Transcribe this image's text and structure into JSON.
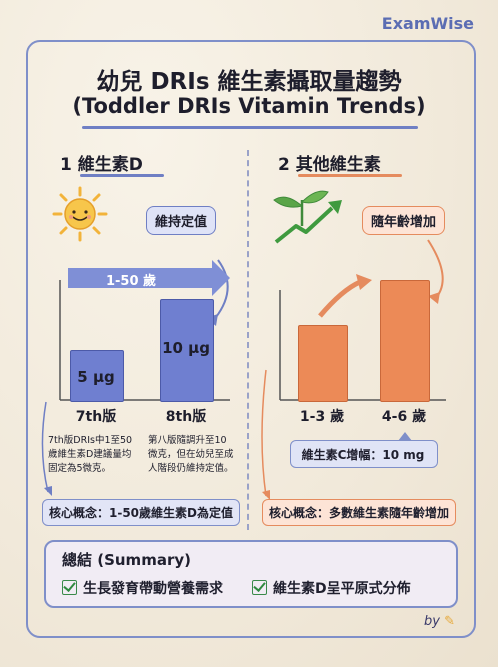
{
  "brand": "ExamWise",
  "title": {
    "line1": "幼兒 DRIs 維生素攝取量趨勢",
    "line2": "(Toddler DRIs Vitamin Trends)"
  },
  "section1": {
    "heading": "1  維生素D",
    "tag": "維持定值",
    "range_label": "1-50 歲",
    "bars": [
      {
        "category": "7th版",
        "label": "5 µg",
        "value": 5
      },
      {
        "category": "8th版",
        "label": "10 µg",
        "value": 10
      }
    ],
    "notes": [
      "7th版DRIs中1至50歲維生素D建議量均固定為5微克。",
      "第八版隨調升至10微克，但在幼兒至成人階段仍維持定值。"
    ],
    "notes_lines": [
      [
        "7th版DRIs中1至50",
        "歲維生素D建議量均",
        "固定為5微克。"
      ],
      [
        "第八版隨調升至10",
        "微克，但在幼兒至成",
        "人階段仍維持定值。"
      ]
    ],
    "concept": "核心概念：1-50歲維生素D為定值"
  },
  "section2": {
    "heading": "2  其他維生素",
    "tag": "隨年齡增加",
    "bars": [
      {
        "category": "1-3 歲",
        "value": 1
      },
      {
        "category": "4-6 歲",
        "value": 1.6
      }
    ],
    "callout": "維生素C增幅：10 mg",
    "concept": "核心概念：多數維生素隨年齡增加"
  },
  "summary": {
    "title": "總結 (Summary)",
    "items": [
      "生長發育帶動營養需求",
      "維生素D呈平原式分佈"
    ]
  },
  "signature": "by",
  "colors": {
    "blue": "#6f7fd0",
    "orange": "#ec8a57",
    "frame": "#7f8fc9"
  }
}
